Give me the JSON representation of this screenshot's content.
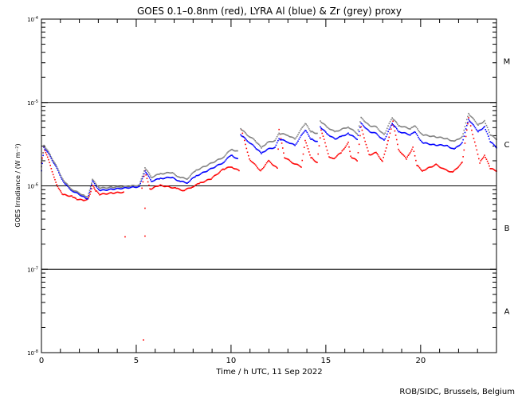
{
  "chart_data": {
    "type": "scatter",
    "title": "GOES 0.1–0.8nm (red), LYRA Al (blue) & Zr (grey) proxy",
    "xlabel": "Time / h UTC, 11 Sep 2022",
    "ylabel": "GOES Irradiance / (W m⁻²)",
    "xlim": [
      0,
      24
    ],
    "ylim": [
      1e-08,
      0.0001
    ],
    "yscale": "log",
    "x_ticks": [
      0,
      5,
      10,
      15,
      20
    ],
    "x_tick_labels": [
      "0",
      "5",
      "10",
      "15",
      "20"
    ],
    "y_ticks": [
      1e-08,
      1e-07,
      1e-06,
      1e-05,
      0.0001
    ],
    "y_tick_labels": [
      {
        "base": "10",
        "exp": "-8"
      },
      {
        "base": "10",
        "exp": "-7"
      },
      {
        "base": "10",
        "exp": "-6"
      },
      {
        "base": "10",
        "exp": "-5"
      },
      {
        "base": "10",
        "exp": "-4"
      }
    ],
    "reference_lines": [
      1e-07,
      1e-06,
      1e-05
    ],
    "flare_classes": [
      {
        "label": "A",
        "low": 1e-08,
        "high": 1e-07
      },
      {
        "label": "B",
        "low": 1e-07,
        "high": 1e-06
      },
      {
        "label": "C",
        "low": 1e-06,
        "high": 1e-05
      },
      {
        "label": "M",
        "low": 1e-05,
        "high": 0.0001
      }
    ],
    "credit": "ROB/SIDC, Brussels, Belgium",
    "series": [
      {
        "name": "GOES 0.1-0.8nm",
        "color": "#ff0000",
        "points": [
          [
            0,
            1.9e-06
          ],
          [
            0.13,
            2.9e-06
          ],
          [
            0.42,
            1.9e-06
          ],
          [
            0.76,
            1.09e-06
          ],
          [
            1.09,
            7.9e-07
          ],
          [
            1.6,
            7.5e-07
          ],
          [
            1.81,
            7e-07
          ],
          [
            2.23,
            6.7e-07
          ],
          [
            2.44,
            7e-07
          ],
          [
            2.56,
            7.9e-07
          ],
          [
            2.69,
            1.02e-06
          ],
          [
            2.86,
            8.8e-07
          ],
          [
            3.07,
            7.9e-07
          ],
          [
            3.7,
            8.2e-07
          ],
          [
            4.33,
            8.4e-07
          ],
          null,
          [
            5.3,
            9.4e-07
          ],
          [
            5.46,
            1.52e-06
          ],
          [
            5.72,
            9.1e-07
          ],
          [
            6.22,
            1.02e-06
          ],
          [
            7.06,
            9.4e-07
          ],
          [
            7.48,
            8.8e-07
          ],
          [
            7.9,
            9.6e-07
          ],
          [
            8.32,
            1.07e-06
          ],
          [
            8.95,
            1.22e-06
          ],
          [
            9.58,
            1.58e-06
          ],
          [
            10.0,
            1.7e-06
          ],
          [
            10.42,
            1.52e-06
          ],
          null,
          [
            10.55,
            4.7e-06
          ],
          [
            10.97,
            2.1e-06
          ],
          [
            11.56,
            1.52e-06
          ],
          [
            11.98,
            2e-06
          ],
          [
            12.44,
            1.62e-06
          ],
          [
            12.53,
            4.7e-06
          ],
          [
            12.82,
            2.2e-06
          ],
          [
            13.24,
            1.9e-06
          ],
          [
            13.7,
            1.7e-06
          ],
          [
            13.91,
            3.5e-06
          ],
          [
            14.21,
            2.2e-06
          ],
          [
            14.54,
            1.9e-06
          ],
          [
            14.75,
            4.7e-06
          ],
          [
            15.17,
            2.25e-06
          ],
          [
            15.38,
            2.1e-06
          ],
          [
            15.8,
            2.5e-06
          ],
          [
            16.18,
            3.3e-06
          ],
          [
            16.31,
            2.25e-06
          ],
          [
            16.65,
            2e-06
          ],
          [
            16.86,
            5.1e-06
          ],
          [
            17.28,
            2.35e-06
          ],
          [
            17.65,
            2.5e-06
          ],
          [
            17.99,
            1.97e-06
          ],
          [
            18.28,
            3.5e-06
          ],
          [
            18.54,
            5.9e-06
          ],
          [
            18.83,
            2.74e-06
          ],
          [
            19.25,
            2.1e-06
          ],
          [
            19.59,
            2.9e-06
          ],
          [
            19.8,
            1.77e-06
          ],
          [
            20.09,
            1.52e-06
          ],
          [
            20.81,
            1.8e-06
          ],
          [
            21.23,
            1.58e-06
          ],
          [
            21.69,
            1.45e-06
          ],
          [
            22.19,
            1.9e-06
          ],
          [
            22.53,
            6.6e-06
          ],
          [
            23.12,
            1.9e-06
          ],
          [
            23.37,
            2.35e-06
          ],
          [
            23.67,
            1.62e-06
          ],
          [
            24,
            1.52e-06
          ]
        ],
        "outliers": [
          [
            4.41,
            2.45e-07
          ],
          [
            5.46,
            2.5e-07
          ],
          [
            5.46,
            5.4e-07
          ],
          [
            5.38,
            1.42e-08
          ]
        ]
      },
      {
        "name": "LYRA Al proxy",
        "color": "#0000ff",
        "points": [
          [
            0,
            1.52e-06
          ],
          [
            0.13,
            2.9e-06
          ],
          [
            0.42,
            2.35e-06
          ],
          [
            0.76,
            1.7e-06
          ],
          [
            1.18,
            1.09e-06
          ],
          [
            1.6,
            8.8e-07
          ],
          [
            2.23,
            7.4e-07
          ],
          [
            2.44,
            7e-07
          ],
          [
            2.69,
            1.14e-06
          ],
          [
            3.07,
            8.8e-07
          ],
          [
            3.7,
            9.1e-07
          ],
          [
            4.33,
            9.4e-07
          ],
          [
            5.17,
            9.8e-07
          ],
          [
            5.46,
            1.52e-06
          ],
          [
            5.8,
            1.14e-06
          ],
          [
            6.22,
            1.22e-06
          ],
          [
            6.85,
            1.27e-06
          ],
          [
            7.27,
            1.14e-06
          ],
          [
            7.69,
            1.09e-06
          ],
          [
            8.11,
            1.3e-06
          ],
          [
            8.74,
            1.52e-06
          ],
          [
            9.58,
            1.9e-06
          ],
          [
            10.0,
            2.35e-06
          ],
          [
            10.34,
            2.1e-06
          ],
          null,
          [
            10.51,
            4.1e-06
          ],
          [
            10.85,
            3.5e-06
          ],
          [
            11.27,
            2.9e-06
          ],
          [
            11.6,
            2.45e-06
          ],
          [
            11.9,
            2.74e-06
          ],
          [
            12.32,
            2.9e-06
          ],
          [
            12.53,
            3.65e-06
          ],
          [
            12.95,
            3.4e-06
          ],
          [
            13.37,
            3.06e-06
          ],
          [
            13.91,
            4.7e-06
          ],
          [
            14.21,
            3.65e-06
          ],
          [
            14.54,
            3.4e-06
          ],
          null,
          [
            14.71,
            5.1e-06
          ],
          [
            15.05,
            4.25e-06
          ],
          [
            15.47,
            3.65e-06
          ],
          [
            15.8,
            3.9e-06
          ],
          [
            16.18,
            4.25e-06
          ],
          [
            16.65,
            3.65e-06
          ],
          [
            16.86,
            5.65e-06
          ],
          [
            17.28,
            4.5e-06
          ],
          [
            17.65,
            4.25e-06
          ],
          [
            18.07,
            3.5e-06
          ],
          [
            18.5,
            5.65e-06
          ],
          [
            18.83,
            4.5e-06
          ],
          [
            19.46,
            4.1e-06
          ],
          [
            19.67,
            4.5e-06
          ],
          [
            20.09,
            3.3e-06
          ],
          [
            20.72,
            3.1e-06
          ],
          [
            21.35,
            3.06e-06
          ],
          [
            21.77,
            2.74e-06
          ],
          [
            22.19,
            3.3e-06
          ],
          [
            22.53,
            6.3e-06
          ],
          [
            23.03,
            4.5e-06
          ],
          [
            23.37,
            5.1e-06
          ],
          [
            23.67,
            3.4e-06
          ],
          [
            24,
            2.9e-06
          ]
        ]
      },
      {
        "name": "LYRA Zr proxy",
        "color": "#808080",
        "points": [
          [
            0,
            1.7e-06
          ],
          [
            0.13,
            3.06e-06
          ],
          [
            0.42,
            2.45e-06
          ],
          [
            0.76,
            1.77e-06
          ],
          [
            1.18,
            1.14e-06
          ],
          [
            1.6,
            9.1e-07
          ],
          [
            2.23,
            7.7e-07
          ],
          [
            2.44,
            7.4e-07
          ],
          [
            2.69,
            1.19e-06
          ],
          [
            3.07,
            9.4e-07
          ],
          [
            3.7,
            9.6e-07
          ],
          [
            4.33,
            9.8e-07
          ],
          [
            5.17,
            1.02e-06
          ],
          [
            5.46,
            1.66e-06
          ],
          [
            5.8,
            1.27e-06
          ],
          [
            6.22,
            1.39e-06
          ],
          [
            6.85,
            1.45e-06
          ],
          [
            7.27,
            1.27e-06
          ],
          [
            7.69,
            1.22e-06
          ],
          [
            8.11,
            1.52e-06
          ],
          [
            8.74,
            1.77e-06
          ],
          [
            9.58,
            2.2e-06
          ],
          [
            10.0,
            2.74e-06
          ],
          [
            10.34,
            2.6e-06
          ],
          null,
          [
            10.51,
            4.85e-06
          ],
          [
            10.85,
            4.1e-06
          ],
          [
            11.27,
            3.5e-06
          ],
          [
            11.6,
            2.86e-06
          ],
          [
            11.9,
            3.3e-06
          ],
          [
            12.32,
            3.5e-06
          ],
          [
            12.53,
            4.25e-06
          ],
          [
            12.95,
            4.1e-06
          ],
          [
            13.37,
            3.65e-06
          ],
          [
            13.91,
            5.65e-06
          ],
          [
            14.21,
            4.5e-06
          ],
          [
            14.54,
            4.25e-06
          ],
          null,
          [
            14.71,
            6e-06
          ],
          [
            15.05,
            5.1e-06
          ],
          [
            15.47,
            4.45e-06
          ],
          [
            16.18,
            5.1e-06
          ],
          [
            16.65,
            4.25e-06
          ],
          [
            16.86,
            6.6e-06
          ],
          [
            17.28,
            5.3e-06
          ],
          [
            17.65,
            5.1e-06
          ],
          [
            18.07,
            4.1e-06
          ],
          [
            18.5,
            6.6e-06
          ],
          [
            18.83,
            5.3e-06
          ],
          [
            19.46,
            4.85e-06
          ],
          [
            19.67,
            5.3e-06
          ],
          [
            20.09,
            4.1e-06
          ],
          [
            20.72,
            3.9e-06
          ],
          [
            21.35,
            3.7e-06
          ],
          [
            21.77,
            3.4e-06
          ],
          [
            22.19,
            3.9e-06
          ],
          [
            22.53,
            7.4e-06
          ],
          [
            23.03,
            5.4e-06
          ],
          [
            23.37,
            6e-06
          ],
          [
            23.67,
            4.1e-06
          ],
          [
            24,
            3.65e-06
          ]
        ]
      }
    ]
  }
}
